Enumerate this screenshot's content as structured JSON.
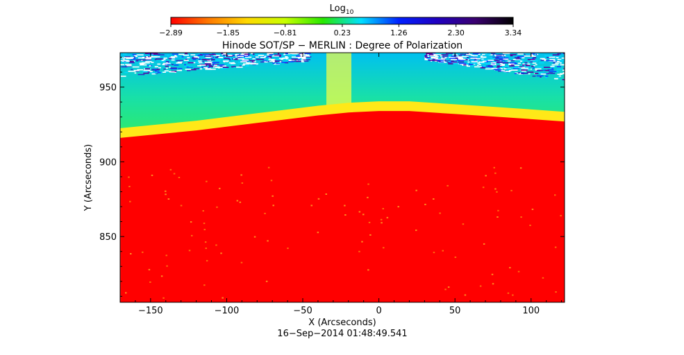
{
  "chart_data": {
    "type": "heatmap",
    "title": "Hinode SOT/SP − MERLIN : Degree of Polarization",
    "xlabel": "X (Arcseconds)",
    "ylabel": "Y (Arcseconds)",
    "timestamp": "16−Sep−2014 01:48:49.541",
    "xlim": [
      -170,
      122
    ],
    "ylim": [
      806,
      973
    ],
    "x_ticks": [
      -150,
      -100,
      -50,
      0,
      50,
      100
    ],
    "x_tick_labels": [
      "−150",
      "−100",
      "−50",
      "0",
      "50",
      "100"
    ],
    "y_ticks": [
      850,
      900,
      950
    ],
    "y_tick_labels": [
      "850",
      "900",
      "950"
    ],
    "colorbar": {
      "label_base": "Log",
      "label_sub": "10",
      "ticks": [
        -2.89,
        -1.85,
        -0.81,
        0.23,
        1.26,
        2.3,
        3.34
      ],
      "tick_labels": [
        "−2.89",
        "−1.85",
        "−0.81",
        "0.23",
        "1.26",
        "2.30",
        "3.34"
      ],
      "colors": [
        "#ff0000",
        "#ff7a00",
        "#ffd800",
        "#c8ff00",
        "#28e800",
        "#00e0ff",
        "#0020ff",
        "#2000c0",
        "#3a0070",
        "#000000"
      ]
    },
    "limb_profile": {
      "x": [
        -170,
        -120,
        -80,
        -40,
        -20,
        0,
        20,
        50,
        80,
        122
      ],
      "y": [
        916,
        921,
        926,
        931,
        933,
        934,
        934,
        932,
        930,
        927
      ]
    },
    "regions": [
      {
        "name": "disk",
        "value": -2.89,
        "color": "#ff0000"
      },
      {
        "name": "limb band",
        "value": 0.0,
        "color": "#ffee10"
      },
      {
        "name": "off-limb",
        "value": 0.8,
        "color": "#52ff25"
      },
      {
        "name": "high off-limb",
        "value": 1.6,
        "color": "#00c8e8"
      },
      {
        "name": "top edge noise",
        "value": 3.0,
        "color": "#ffffff"
      }
    ]
  }
}
